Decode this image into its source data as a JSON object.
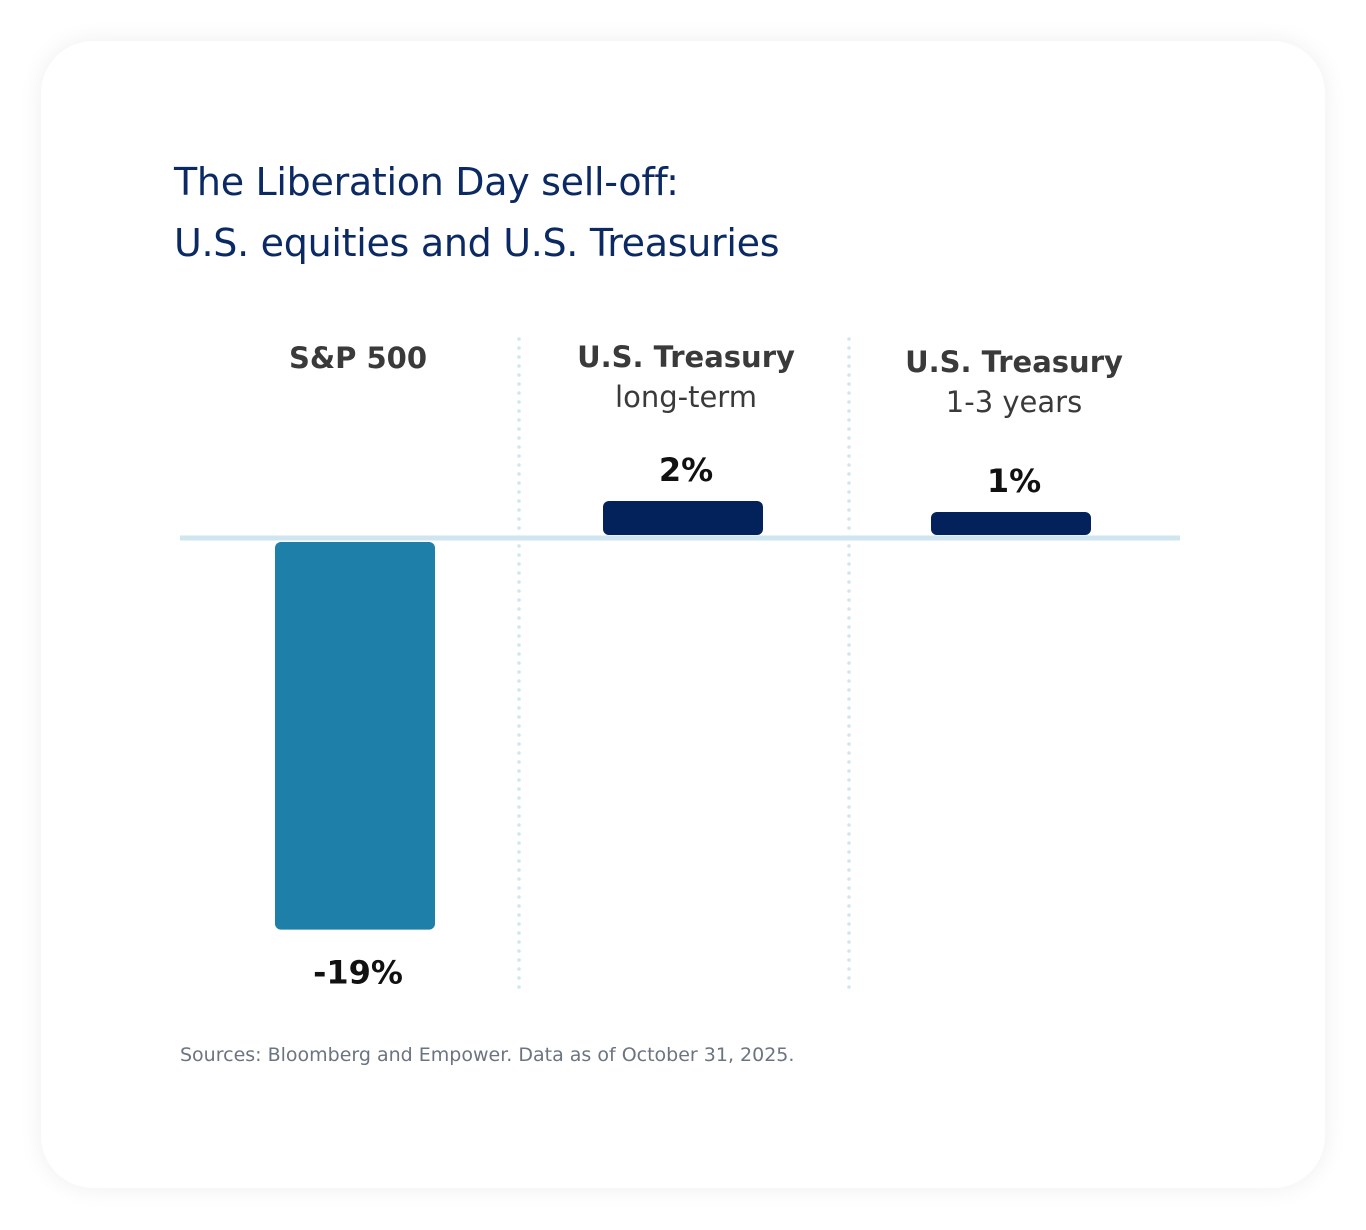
{
  "chart_data": {
    "type": "bar",
    "title": [
      "The Liberation Day sell-off:",
      "U.S. equities and U.S. Treasuries"
    ],
    "categories": [
      {
        "name": "S&P 500",
        "sub": ""
      },
      {
        "name": "U.S. Treasury",
        "sub": "long-term"
      },
      {
        "name": "U.S. Treasury",
        "sub": "1-3 years"
      }
    ],
    "values": [
      -19,
      2,
      1
    ],
    "data_labels": [
      "-19%",
      "2%",
      "1%"
    ],
    "colors": [
      "#1e7fa8",
      "#03215a",
      "#03215a"
    ],
    "baseline_color": "#cfe6f0",
    "divider_color": "#cfe6f0",
    "grid": false,
    "source": "Sources: Bloomberg and Empower. Data as of October 31, 2025."
  }
}
